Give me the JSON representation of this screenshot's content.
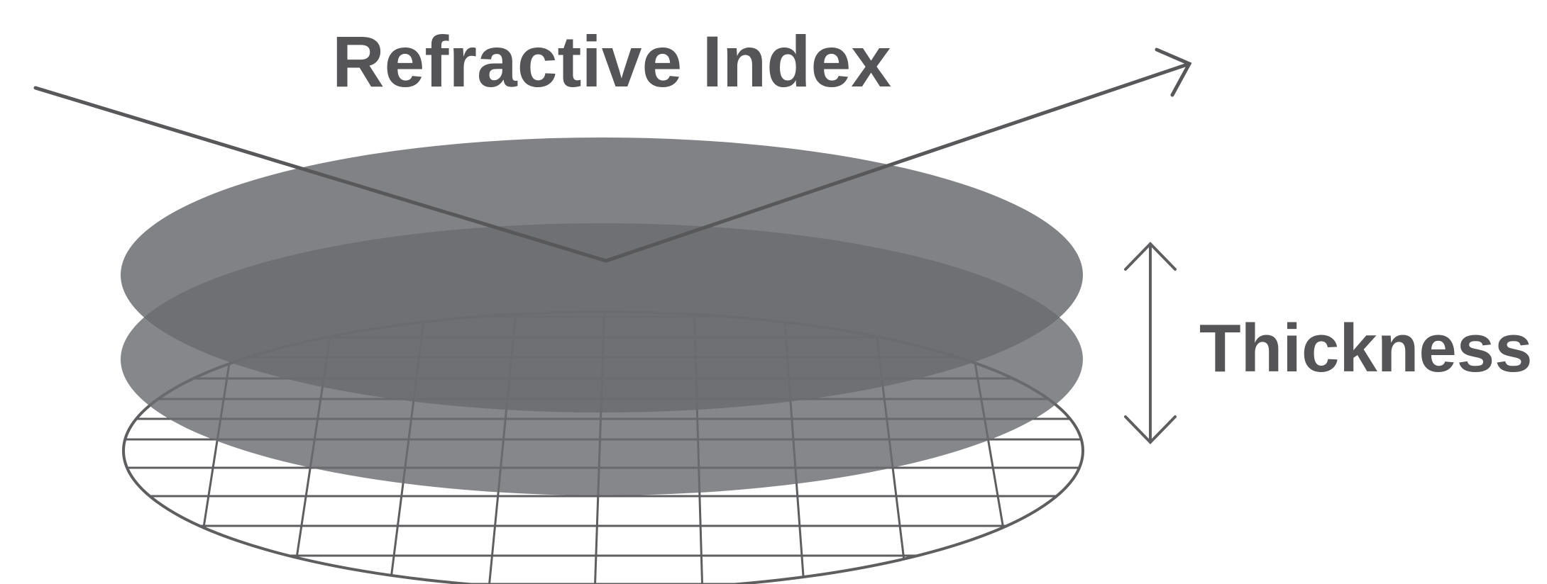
{
  "labels": {
    "title": "Refractive Index",
    "thickness": "Thickness"
  },
  "colors": {
    "text": "#555557",
    "stroke": "#5e5e60",
    "film_layer": "#6b6c70",
    "background": "#ffffff"
  }
}
